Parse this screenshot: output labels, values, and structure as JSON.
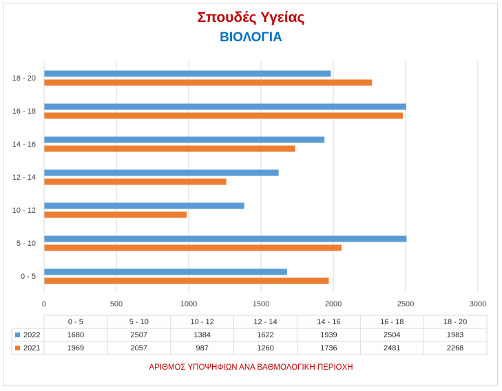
{
  "header": {
    "title": "Σπουδές Υγείας",
    "subtitle": "ΒΙΟΛΟΓΙΑ"
  },
  "colors": {
    "title": "#c00000",
    "subtitle": "#0070c0",
    "series_2022": "#5b9bd5",
    "series_2021": "#ed7d31",
    "grid": "#d9d9d9",
    "footer": "#c00000"
  },
  "footer": {
    "caption": "ΑΡΙΘΜΟΣ ΥΠΟΨΗΦΙΩΝ ΑΝΑ ΒΑΘΜΟΛΟΓΙΚΗ ΠΕΡΙΟΧΗ"
  },
  "chart_data": {
    "type": "bar",
    "orientation": "horizontal",
    "title": "Σπουδές Υγείας",
    "subtitle": "ΒΙΟΛΟΓΙΑ",
    "xlabel": "ΑΡΙΘΜΟΣ ΥΠΟΨΗΦΙΩΝ ΑΝΑ ΒΑΘΜΟΛΟΓΙΚΗ ΠΕΡΙΟΧΗ",
    "ylabel": "",
    "categories": [
      "0 - 5",
      "5 - 10",
      "10 - 12",
      "12 - 14",
      "14 - 16",
      "16 - 18",
      "18 - 20"
    ],
    "series": [
      {
        "name": "2022",
        "values": [
          1680,
          2507,
          1384,
          1622,
          1939,
          2504,
          1983
        ]
      },
      {
        "name": "2021",
        "values": [
          1969,
          2057,
          987,
          1260,
          1736,
          2481,
          2268
        ]
      }
    ],
    "xlim": [
      0,
      3000
    ],
    "xticks": [
      0,
      500,
      1000,
      1500,
      2000,
      2500,
      3000
    ],
    "grid": true,
    "legend": "data-table-below",
    "data_table": true
  }
}
